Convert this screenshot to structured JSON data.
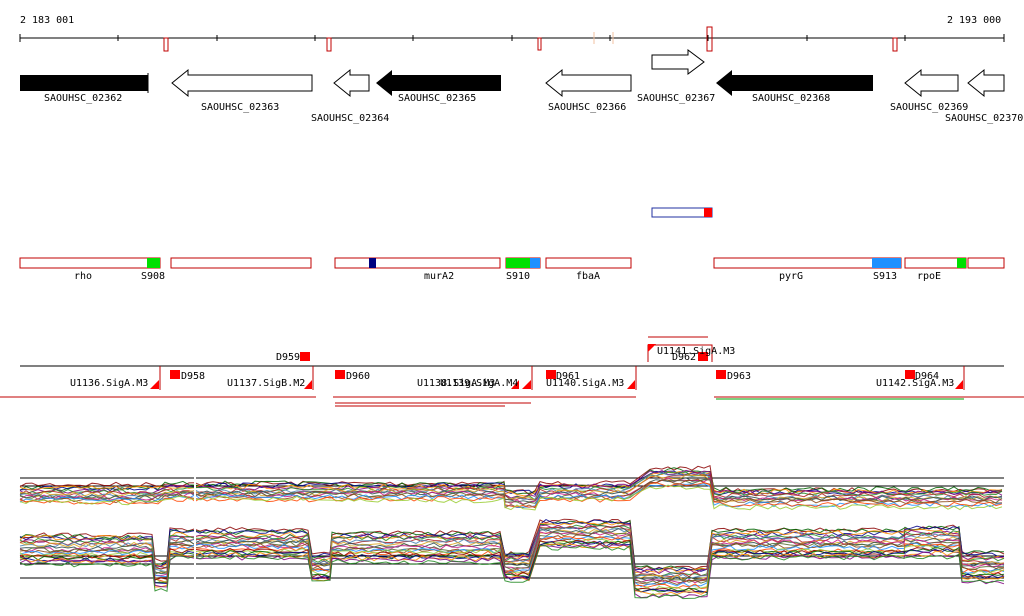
{
  "coordinates": {
    "start": "2 183 001",
    "end": "2 193 000"
  },
  "genes": [
    {
      "name": "SAOUHSC_02362"
    },
    {
      "name": "SAOUHSC_02363"
    },
    {
      "name": "SAOUHSC_02364"
    },
    {
      "name": "SAOUHSC_02365"
    },
    {
      "name": "SAOUHSC_02366"
    },
    {
      "name": "SAOUHSC_02367"
    },
    {
      "name": "SAOUHSC_02368"
    },
    {
      "name": "SAOUHSC_02369"
    },
    {
      "name": "SAOUHSC_02370"
    }
  ],
  "operons": [
    {
      "gene": "rho",
      "segment": "S908"
    },
    {
      "gene": "murA2",
      "segment": ""
    },
    {
      "gene": "",
      "segment": "S910"
    },
    {
      "gene": "fbaA",
      "segment": ""
    },
    {
      "gene": "pyrG",
      "segment": "S913"
    },
    {
      "gene": "rpoE",
      "segment": ""
    }
  ],
  "units": [
    "U1136.SigA.M3",
    "U1137.SigB.M2",
    "U1138.SigA.M3",
    "U1139.SigA.M4",
    "U1140.SigA.M3",
    "U1141.SigA.M3",
    "U1142.SigA.M3"
  ],
  "downshifts": [
    "D958",
    "D959",
    "D960",
    "D961",
    "D962",
    "D963",
    "D964"
  ],
  "colors": {
    "gene_fill": "#000000",
    "operon_outline": "#c00000",
    "segment_green": "#00e000",
    "segment_blue": "#1e90ff",
    "downshift_red": "#ff0000",
    "navy_marker": "#000080",
    "expression_line": "#008000"
  }
}
